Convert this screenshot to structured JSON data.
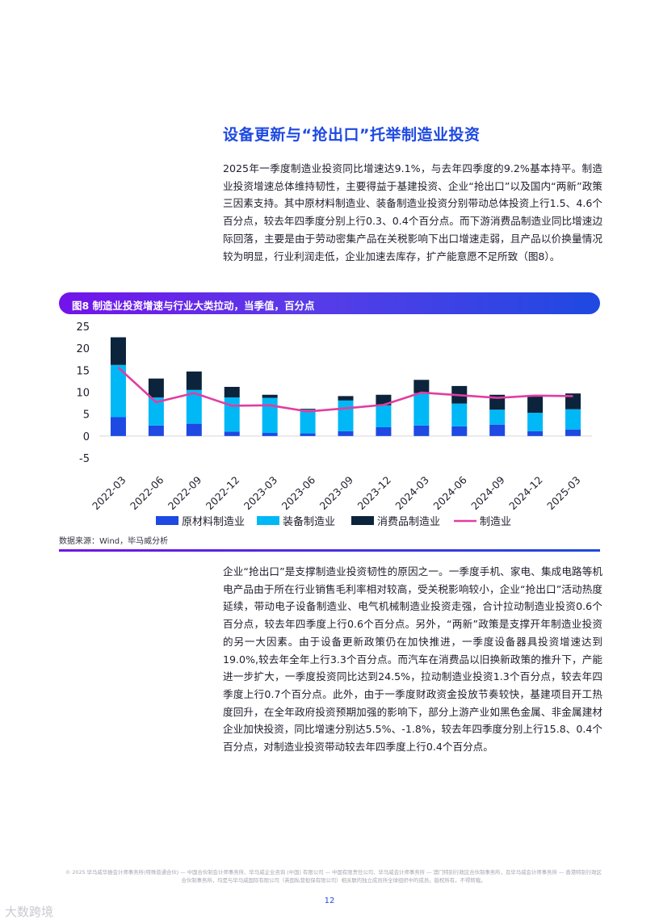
{
  "section_title": "设备更新与“抢出口”托举制造业投资",
  "paragraph1": "2025年一季度制造业投资同比增速达9.1%，与去年四季度的9.2%基本持平。制造业投资增速总体维持韧性，主要得益于基建投资、企业“抢出口”以及国内“两新”政策三因素支持。其中原材料制造业、装备制造业投资分别带动总体投资上行1.5、4.6个百分点，较去年四季度分别上行0.3、0.4个百分点。而下游消费品制造业同比增速边际回落，主要是由于劳动密集产品在关税影响下出口增速走弱，且产品以价换量情况较为明显，行业利润走低，企业加速去库存，扩产能意愿不足所致（图8）。",
  "figure": {
    "title": "图8  制造业投资增速与行业大类拉动，当季值，百分点",
    "source": "数据来源：Wind，毕马威分析"
  },
  "chart_data": {
    "type": "bar",
    "stacked": true,
    "categories": [
      "2022-03",
      "2022-06",
      "2022-09",
      "2022-12",
      "2023-03",
      "2023-06",
      "2023-09",
      "2023-12",
      "2024-03",
      "2024-06",
      "2024-09",
      "2024-12",
      "2025-03"
    ],
    "series": [
      {
        "name": "原材料制造业",
        "type": "bar",
        "color": "#1e49e2",
        "values": [
          4.3,
          2.4,
          2.8,
          1.0,
          0.7,
          0.6,
          1.1,
          2.0,
          2.4,
          2.2,
          2.6,
          1.1,
          1.5
        ]
      },
      {
        "name": "装备制造业",
        "type": "bar",
        "color": "#00b8f5",
        "values": [
          11.9,
          6.4,
          7.7,
          7.8,
          8.0,
          5.4,
          7.0,
          5.0,
          7.4,
          5.2,
          3.4,
          4.2,
          4.6
        ]
      },
      {
        "name": "消费品制造业",
        "type": "bar",
        "color": "#0c233c",
        "values": [
          6.3,
          4.3,
          4.2,
          2.4,
          0.7,
          0.2,
          1.0,
          2.4,
          3.0,
          4.0,
          3.4,
          4.0,
          3.6
        ]
      },
      {
        "name": "制造业",
        "type": "line",
        "color": "#e13ea0",
        "values": [
          15.6,
          7.7,
          9.8,
          6.9,
          7.0,
          5.6,
          6.3,
          7.1,
          9.9,
          9.3,
          8.7,
          9.2,
          9.1
        ]
      }
    ],
    "ylim": [
      -5,
      25
    ],
    "yticks": [
      25,
      20,
      15,
      10,
      5,
      0,
      -5
    ],
    "legend_position": "bottom"
  },
  "paragraph2": "企业“抢出口”是支撑制造业投资韧性的原因之一。一季度手机、家电、集成电路等机电产品由于所在行业销售毛利率相对较高，受关税影响较小，企业“抢出口”活动热度延续，带动电子设备制造业、电气机械制造业投资走强，合计拉动制造业投资0.6个百分点，较去年四季度上行0.6个百分点。另外，“两新”政策是支撑开年制造业投资的另一大因素。由于设备更新政策仍在加快推进，一季度设备器具投资增速达到19.0%,较去年全年上行3.3个百分点。而汽车在消费品以旧换新政策的推升下，产能进一步扩大，一季度投资同比达到24.5%，拉动制造业投资1.3个百分点，较去年四季度上行0.7个百分点。此外，由于一季度财政资金投放节奏较快，基建项目开工热度回升，在全年政府投资预期加强的影响下，部分上游产业如黑色金属、非金属建材企业加快投资，同比增速分别达5.5%、-1.8%，较去年四季度分别上行15.8、0.4个百分点，对制造业投资带动较去年四季度上行0.4个百分点。",
  "footer": "© 2025 毕马威华振会计师事务所(特殊普通合伙) — 中国合伙制会计师事务所、毕马威企业咨询 (中国) 有限公司 — 中国有限责任公司、毕马威会计师事务所 — 澳门特别行政区合伙制事务所，及毕马威会计师事务所 — 香港特别行政区合伙制事务所，均是与毕马威国际有限公司（英国私营担保有限公司）相关联的独立成员所全球组织中的成员。版权所有，不得转载。",
  "page_number": "12",
  "watermark": "大数跨境"
}
